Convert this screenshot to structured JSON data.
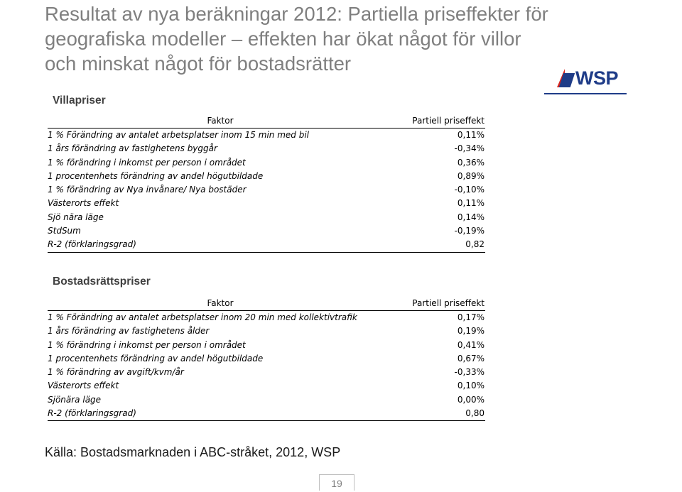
{
  "title": "Resultat av nya beräkningar 2012: Partiella priseffekter för geografiska modeller – effekten har ökat något för villor och minskat något för bostadsrätter",
  "logo": {
    "text": "WSP"
  },
  "villa": {
    "section_title": "Villapriser",
    "header": {
      "factor": "Faktor",
      "effect": "Partiell priseffekt"
    },
    "rows": [
      {
        "label": "1 % Förändring av antalet arbetsplatser inom 15 min med bil",
        "value": "0,11%"
      },
      {
        "label": "1 års förändring av fastighetens byggår",
        "value": "-0,34%"
      },
      {
        "label": "1 % förändring i inkomst per person i området",
        "value": "0,36%"
      },
      {
        "label": "1 procentenhets förändring av andel högutbildade",
        "value": "0,89%"
      },
      {
        "label": "1 % förändring av Nya invånare/ Nya bostäder",
        "value": "-0,10%"
      },
      {
        "label": "Västerorts effekt",
        "value": "0,11%"
      },
      {
        "label": "Sjö nära läge",
        "value": "0,14%"
      },
      {
        "label": "StdSum",
        "value": "-0,19%"
      },
      {
        "label": "R-2 (förklaringsgrad)",
        "value": "0,82"
      }
    ]
  },
  "bostadsratt": {
    "section_title": "Bostadsrättspriser",
    "header": {
      "factor": "Faktor",
      "effect": "Partiell priseffekt"
    },
    "rows": [
      {
        "label": "1 % Förändring av antalet arbetsplatser inom 20 min med kollektivtrafik",
        "value": "0,17%"
      },
      {
        "label": "1 års förändring av fastighetens ålder",
        "value": "0,19%"
      },
      {
        "label": "1 % förändring i inkomst per person i området",
        "value": "0,41%"
      },
      {
        "label": "1 procentenhets förändring av andel högutbildade",
        "value": "0,67%"
      },
      {
        "label": "1 % förändring av avgift/kvm/år",
        "value": "-0,33%"
      },
      {
        "label": "Västerorts effekt",
        "value": "0,10%"
      },
      {
        "label": "Sjönära läge",
        "value": "0,00%"
      },
      {
        "label": "R-2 (förklaringsgrad)",
        "value": "0,80"
      }
    ]
  },
  "source": "Källa: Bostadsmarknaden i ABC-stråket, 2012, WSP",
  "page_number": "19"
}
